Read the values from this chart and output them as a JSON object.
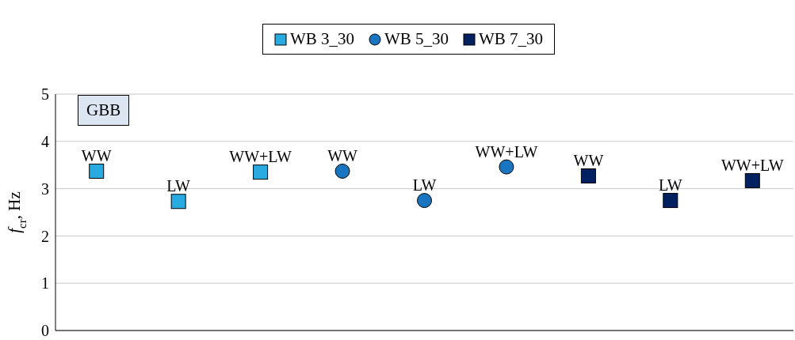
{
  "chart_data": {
    "type": "scatter",
    "ylabel": "f$_{cr}$, Hz",
    "categories": [
      null,
      null,
      null,
      null,
      null,
      null,
      null,
      null,
      null
    ],
    "series": [
      {
        "name": "WB 3_30",
        "color": "#29abe2",
        "marker": "square",
        "values": [
          3.37,
          2.73,
          3.35,
          null,
          null,
          null,
          null,
          null,
          null
        ],
        "value_labels": [
          "WW",
          "LW",
          "WW+LW",
          null,
          null,
          null,
          null,
          null,
          null
        ]
      },
      {
        "name": "WB 5_30",
        "color": "#1a75c0",
        "marker": "circle",
        "values": [
          null,
          null,
          null,
          3.37,
          2.75,
          3.46,
          null,
          null,
          null
        ],
        "value_labels": [
          null,
          null,
          null,
          "WW",
          "LW",
          "WW+LW",
          null,
          null,
          null
        ]
      },
      {
        "name": "WB 7_30",
        "color": "#002060",
        "marker": "square",
        "values": [
          null,
          null,
          null,
          null,
          null,
          null,
          3.27,
          2.75,
          3.17
        ],
        "value_labels": [
          null,
          null,
          null,
          null,
          null,
          null,
          "WW",
          "LW",
          "WW+LW"
        ]
      }
    ],
    "ylim": [
      0,
      5
    ],
    "yticks": [
      0,
      1,
      2,
      3,
      4,
      5
    ],
    "grid": "y",
    "legend": "top",
    "annotations": [
      "GBB"
    ]
  }
}
